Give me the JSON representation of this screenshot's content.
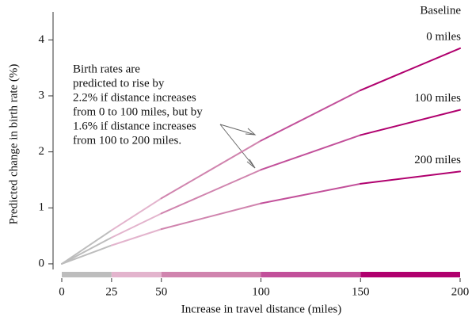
{
  "chart_data": {
    "type": "line",
    "y_label": "Predicted change in birth rate (%)",
    "x_label": "Increase in travel distance (miles)",
    "legend_title": "Baseline",
    "x": [
      0,
      25,
      50,
      100,
      150,
      200
    ],
    "segment_colors": [
      "#bdbdbd",
      "#e3b4cd",
      "#d084ae",
      "#c2509a",
      "#b0006e"
    ],
    "series": [
      {
        "name": "0 miles",
        "values": [
          0,
          0.6,
          1.17,
          2.2,
          3.1,
          3.85
        ]
      },
      {
        "name": "100 miles",
        "values": [
          0,
          0.47,
          0.9,
          1.68,
          2.3,
          2.75
        ]
      },
      {
        "name": "200 miles",
        "values": [
          0,
          0.33,
          0.62,
          1.08,
          1.43,
          1.65
        ]
      }
    ],
    "annotation": [
      "Birth rates are",
      "predicted to rise by",
      "2.2% if distance increases",
      "from 0 to 100 miles, but by",
      "1.6% if distance increases",
      "from 100 to 200 miles."
    ],
    "xlim": [
      0,
      200
    ],
    "xticks": [
      0,
      25,
      50,
      100,
      150,
      200
    ],
    "ylim": [
      -0.1,
      4.5
    ],
    "yticks": [
      0,
      1,
      2,
      3,
      4
    ]
  }
}
